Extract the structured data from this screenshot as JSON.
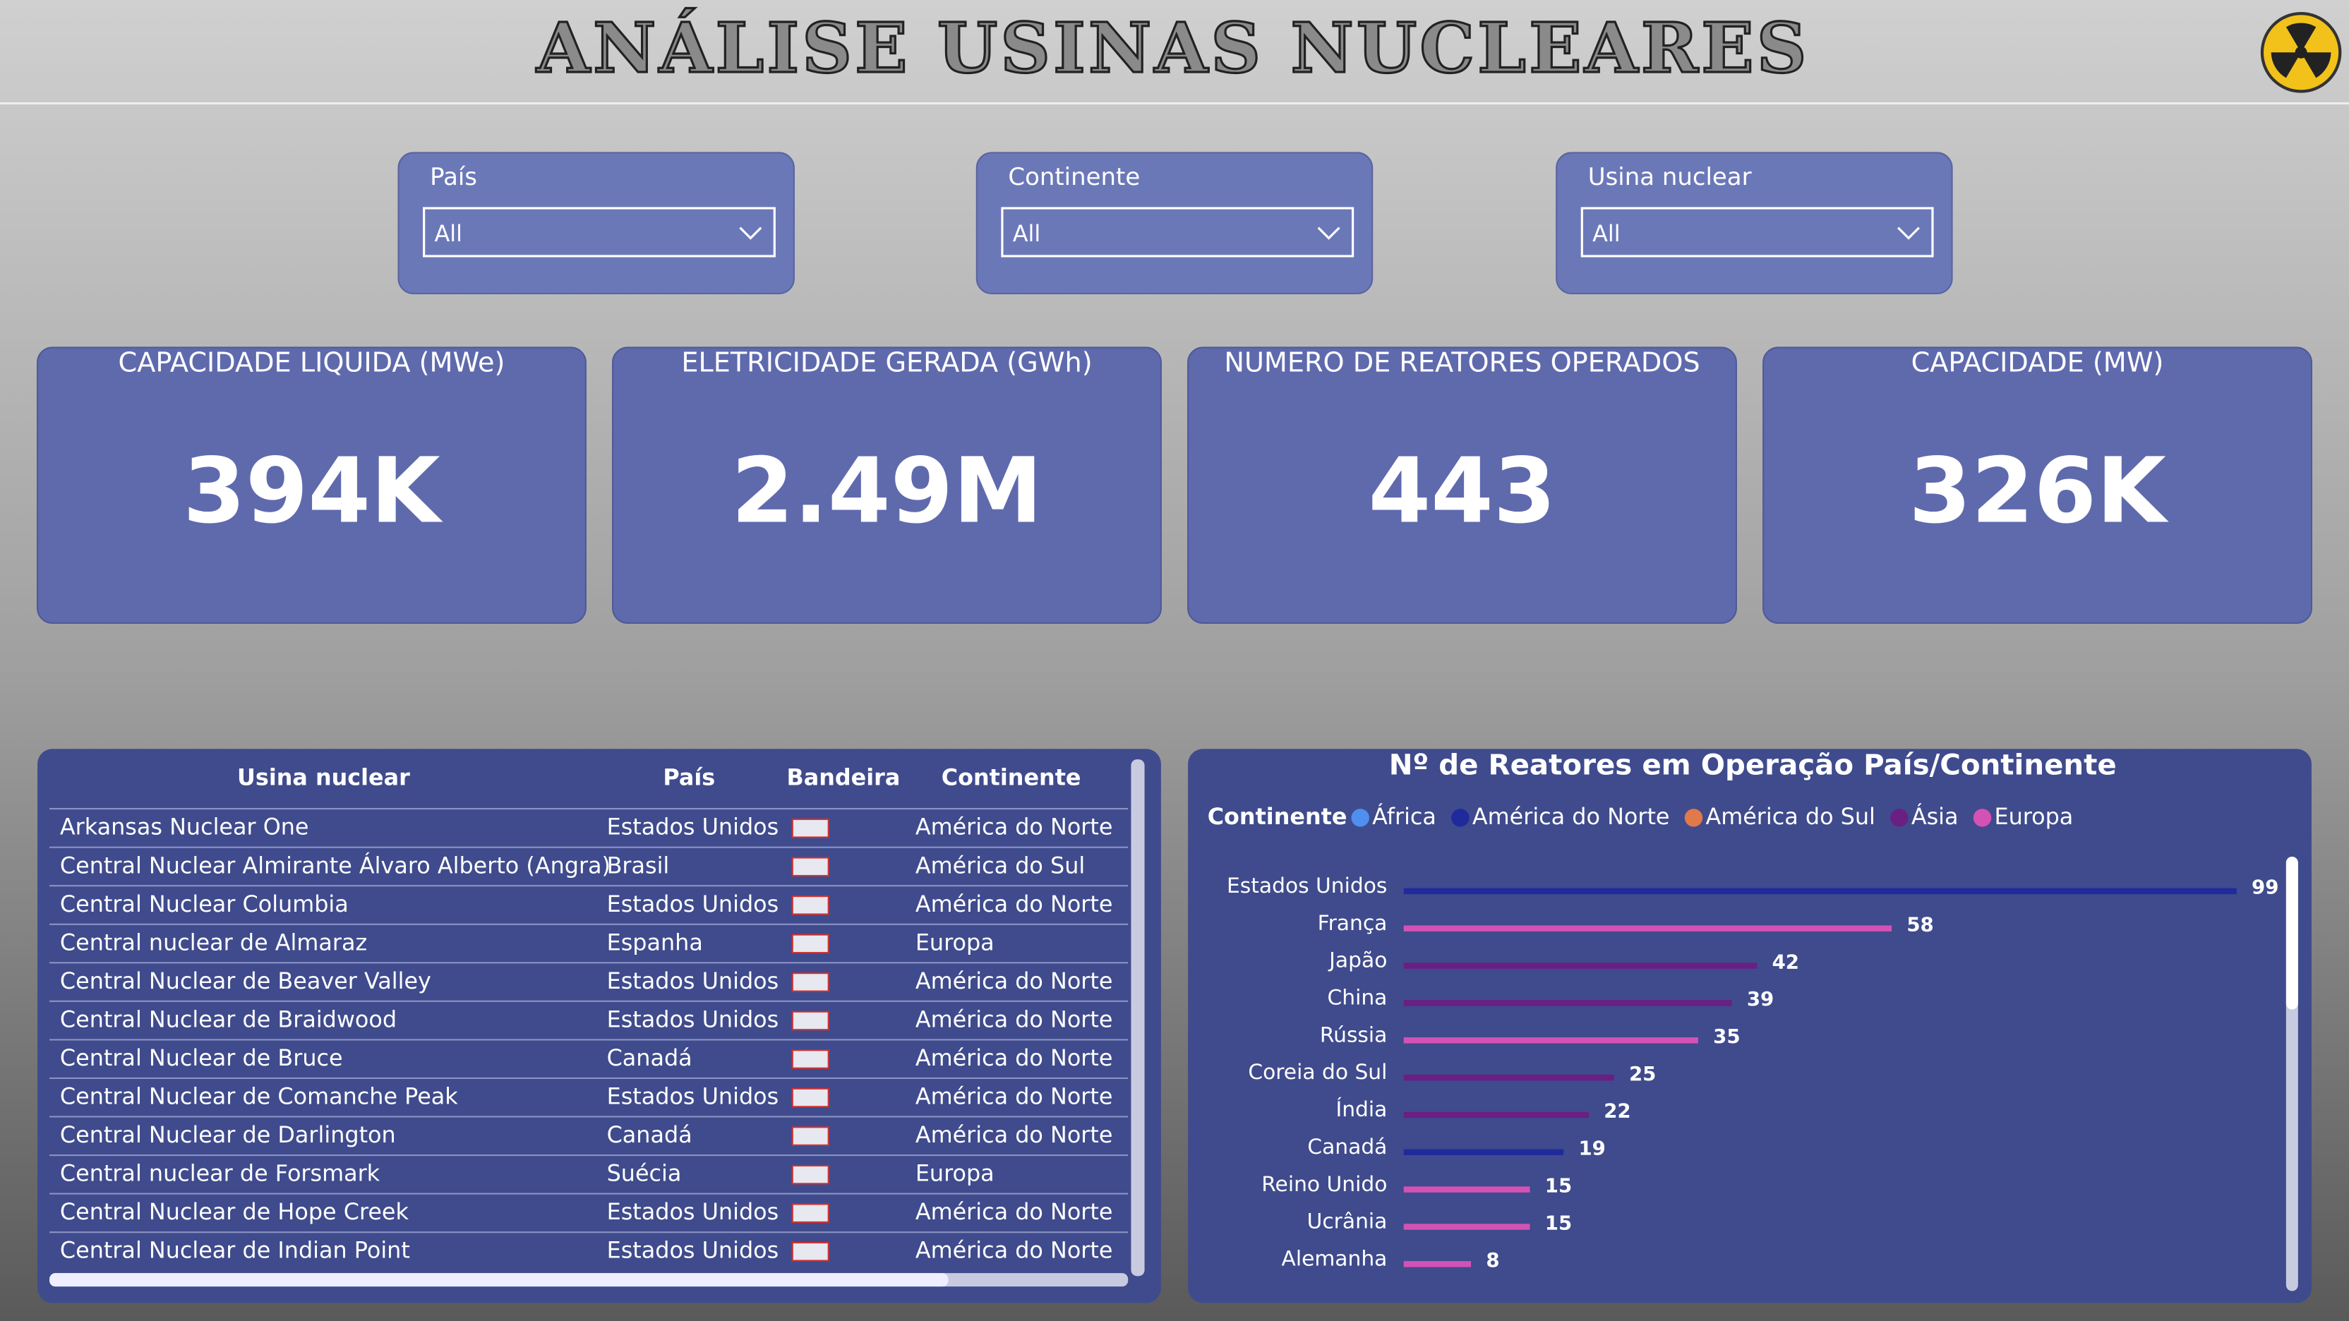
{
  "header": {
    "title": "ANÁLISE USINAS NUCLEARES"
  },
  "filters": [
    {
      "label": "País",
      "value": "All"
    },
    {
      "label": "Continente",
      "value": "All"
    },
    {
      "label": "Usina nuclear",
      "value": "All"
    }
  ],
  "cards": [
    {
      "title": "CAPACIDADE LIQUIDA (MWe)",
      "value": "394K"
    },
    {
      "title": "ELETRICIDADE GERADA (GWh)",
      "value": "2.49M"
    },
    {
      "title": "NUMERO DE REATORES OPERADOS",
      "value": "443"
    },
    {
      "title": "CAPACIDADE (MW)",
      "value": "326K"
    }
  ],
  "table": {
    "columns": [
      "Usina nuclear",
      "País",
      "Bandeira",
      "Continente"
    ],
    "rows": [
      [
        "Arkansas Nuclear One",
        "Estados Unidos",
        "América do Norte"
      ],
      [
        "Central Nuclear Almirante Álvaro Alberto (Angra)",
        "Brasil",
        "América do Sul"
      ],
      [
        "Central Nuclear Columbia",
        "Estados Unidos",
        "América do Norte"
      ],
      [
        "Central nuclear de Almaraz",
        "Espanha",
        "Europa"
      ],
      [
        "Central Nuclear de Beaver Valley",
        "Estados Unidos",
        "América do Norte"
      ],
      [
        "Central Nuclear de Braidwood",
        "Estados Unidos",
        "América do Norte"
      ],
      [
        "Central Nuclear de Bruce",
        "Canadá",
        "América do Norte"
      ],
      [
        "Central Nuclear de Comanche Peak",
        "Estados Unidos",
        "América do Norte"
      ],
      [
        "Central Nuclear de Darlington",
        "Canadá",
        "América do Norte"
      ],
      [
        "Central nuclear de Forsmark",
        "Suécia",
        "Europa"
      ],
      [
        "Central Nuclear de Hope Creek",
        "Estados Unidos",
        "América do Norte"
      ],
      [
        "Central Nuclear de Indian Point",
        "Estados Unidos",
        "América do Norte"
      ]
    ]
  },
  "chart_data": {
    "type": "bar",
    "orientation": "horizontal",
    "title": "Nº de Reatores em Operação País/Continente",
    "legend_title": "Continente",
    "categories": [
      "Estados Unidos",
      "França",
      "Japão",
      "China",
      "Rússia",
      "Coreia do Sul",
      "Índia",
      "Canadá",
      "Reino Unido",
      "Ucrânia",
      "Alemanha"
    ],
    "series": [
      {
        "name": "África",
        "color": "#4f8ff0",
        "values": [
          null,
          null,
          null,
          null,
          null,
          null,
          null,
          null,
          null,
          null,
          null
        ]
      },
      {
        "name": "América do Norte",
        "color": "#1f2b9c",
        "values": [
          99,
          null,
          null,
          null,
          null,
          null,
          null,
          19,
          null,
          null,
          null
        ]
      },
      {
        "name": "América do Sul",
        "color": "#e07a4a",
        "values": [
          null,
          null,
          null,
          null,
          null,
          null,
          null,
          null,
          null,
          null,
          null
        ]
      },
      {
        "name": "Ásia",
        "color": "#6a1f82",
        "values": [
          null,
          null,
          42,
          39,
          null,
          25,
          22,
          null,
          null,
          null,
          null
        ]
      },
      {
        "name": "Europa",
        "color": "#d452b4",
        "values": [
          null,
          58,
          null,
          null,
          35,
          null,
          null,
          null,
          15,
          15,
          8
        ]
      }
    ]
  }
}
